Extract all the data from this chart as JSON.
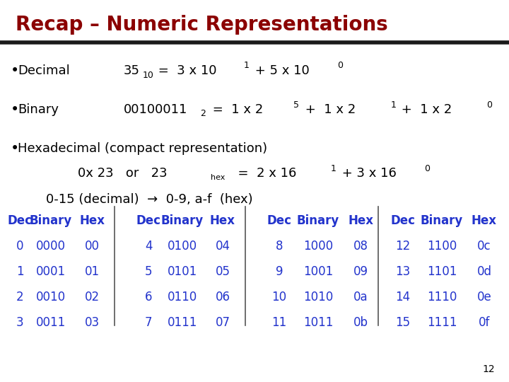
{
  "title": "Recap – Numeric Representations",
  "title_color": "#8B0000",
  "title_fontsize": 20,
  "bg_color": "#FFFFFF",
  "rule_color": "#1a1a1a",
  "black": "#000000",
  "blue": "#2233CC",
  "slide_number": "12",
  "body_fs": 13,
  "sup_fs": 9,
  "sub_fs": 9,
  "table_fs": 12,
  "table_data": [
    [
      0,
      "0000",
      "00",
      4,
      "0100",
      "04",
      8,
      "1000",
      "08",
      12,
      "1100",
      "0c"
    ],
    [
      1,
      "0001",
      "01",
      5,
      "0101",
      "05",
      9,
      "1001",
      "09",
      13,
      "1101",
      "0d"
    ],
    [
      2,
      "0010",
      "02",
      6,
      "0110",
      "06",
      10,
      "1010",
      "0a",
      14,
      "1110",
      "0e"
    ],
    [
      3,
      "0011",
      "03",
      7,
      "0111",
      "07",
      11,
      "1011",
      "0b",
      15,
      "1111",
      "0f"
    ]
  ]
}
